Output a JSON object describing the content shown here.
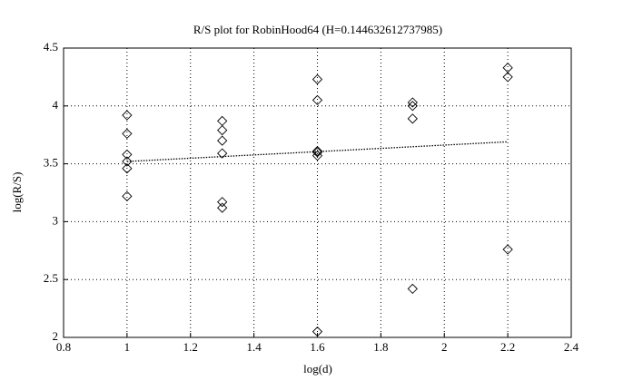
{
  "chart_data": {
    "type": "scatter",
    "title": "R/S plot for RobinHood64 (H=0.144632612737985)",
    "xlabel": "log(d)",
    "ylabel": "log(R/S)",
    "xlim": [
      0.8,
      2.4
    ],
    "xticks": [
      0.8,
      1,
      1.2,
      1.4,
      1.6,
      1.8,
      2,
      2.2,
      2.4
    ],
    "ylim": [
      2,
      4.5
    ],
    "yticks": [
      2,
      2.5,
      3,
      3.5,
      4,
      4.5
    ],
    "grid": true,
    "series": [
      {
        "color": "#000000",
        "marker": "diamond",
        "x": [
          1,
          1,
          1,
          1,
          1,
          1,
          1.3,
          1.3,
          1.3,
          1.3,
          1.3,
          1.3,
          1.6,
          1.6,
          1.6,
          1.6,
          1.6,
          1.6,
          1.9,
          1.9,
          1.9,
          1.9,
          2.2,
          2.2,
          2.2
        ],
        "values": [
          3.92,
          3.76,
          3.58,
          3.52,
          3.46,
          3.22,
          3.87,
          3.79,
          3.7,
          3.59,
          3.17,
          3.12,
          4.23,
          4.05,
          3.61,
          3.6,
          3.57,
          2.05,
          4.03,
          4.0,
          3.89,
          2.42,
          4.33,
          4.25,
          2.76
        ]
      },
      {
        "color": "#000000",
        "style": "dotted",
        "x": [
          1,
          2.2
        ],
        "values": [
          3.52,
          3.69
        ]
      }
    ]
  }
}
